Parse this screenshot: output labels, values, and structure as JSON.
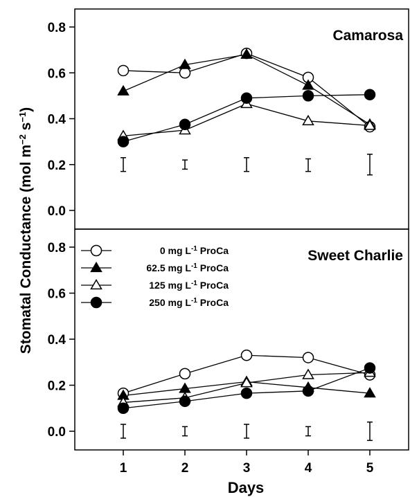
{
  "figure": {
    "ylabel": "Stomatal Conductance (mol m",
    "ylabel_sup1": "−2",
    "ylabel_mid": " s",
    "ylabel_sup2": "−1",
    "ylabel_end": ")",
    "xlabel": "Days"
  },
  "legend": {
    "placement": "top-left of bottom panel",
    "entries": [
      {
        "prefix": "0 mg L",
        "sup": "-1",
        "suffix": " ProCa",
        "marker": "open-circle"
      },
      {
        "prefix": "62.5 mg L",
        "sup": "-1",
        "suffix": " ProCa",
        "marker": "filled-triangle"
      },
      {
        "prefix": "125  mg L",
        "sup": "-1",
        "suffix": " ProCa",
        "marker": "open-triangle"
      },
      {
        "prefix": "250  mg L",
        "sup": "-1",
        "suffix": " ProCa",
        "marker": "filled-circle"
      }
    ]
  },
  "chart_data": [
    {
      "type": "line",
      "title": "Camarosa",
      "x": [
        1,
        2,
        3,
        4,
        5
      ],
      "xticks": [
        "1",
        "2",
        "3",
        "4",
        "5"
      ],
      "ylim": [
        -0.08,
        0.88
      ],
      "yticks": [
        "0.0",
        "0.2",
        "0.4",
        "0.6",
        "0.8"
      ],
      "series": [
        {
          "name": "0 mg L-1 ProCa",
          "marker": "open-circle",
          "values": [
            0.61,
            0.6,
            0.685,
            0.58,
            0.365
          ]
        },
        {
          "name": "62.5 mg L-1 ProCa",
          "marker": "filled-triangle",
          "values": [
            0.52,
            0.635,
            0.68,
            0.545,
            0.375
          ]
        },
        {
          "name": "125 mg L-1 ProCa",
          "marker": "open-triangle",
          "values": [
            0.325,
            0.35,
            0.465,
            0.39,
            0.37
          ]
        },
        {
          "name": "250 mg L-1 ProCa",
          "marker": "filled-circle",
          "values": [
            0.3,
            0.375,
            0.49,
            0.5,
            0.505
          ]
        }
      ],
      "error_bars": [
        {
          "x": 1,
          "low": 0.17,
          "high": 0.23
        },
        {
          "x": 2,
          "low": 0.18,
          "high": 0.22
        },
        {
          "x": 3,
          "low": 0.17,
          "high": 0.23
        },
        {
          "x": 4,
          "low": 0.17,
          "high": 0.225
        },
        {
          "x": 5,
          "low": 0.155,
          "high": 0.245
        }
      ]
    },
    {
      "type": "line",
      "title": "Sweet Charlie",
      "x": [
        1,
        2,
        3,
        4,
        5
      ],
      "xticks": [
        "1",
        "2",
        "3",
        "4",
        "5"
      ],
      "ylim": [
        -0.08,
        0.88
      ],
      "yticks": [
        "0.0",
        "0.2",
        "0.4",
        "0.6",
        "0.8"
      ],
      "series": [
        {
          "name": "0 mg L-1 ProCa",
          "marker": "open-circle",
          "values": [
            0.165,
            0.25,
            0.33,
            0.32,
            0.245
          ]
        },
        {
          "name": "62.5 mg L-1 ProCa",
          "marker": "filled-triangle",
          "values": [
            0.155,
            0.185,
            0.215,
            0.19,
            0.165
          ]
        },
        {
          "name": "125 mg L-1 ProCa",
          "marker": "open-triangle",
          "values": [
            0.125,
            0.145,
            0.21,
            0.245,
            0.255
          ]
        },
        {
          "name": "250 mg L-1 ProCa",
          "marker": "filled-circle",
          "values": [
            0.1,
            0.13,
            0.165,
            0.175,
            0.275
          ]
        }
      ],
      "error_bars": [
        {
          "x": 1,
          "low": -0.03,
          "high": 0.03
        },
        {
          "x": 2,
          "low": -0.02,
          "high": 0.02
        },
        {
          "x": 3,
          "low": -0.03,
          "high": 0.03
        },
        {
          "x": 4,
          "low": -0.02,
          "high": 0.02
        },
        {
          "x": 5,
          "low": -0.04,
          "high": 0.04
        }
      ]
    }
  ]
}
